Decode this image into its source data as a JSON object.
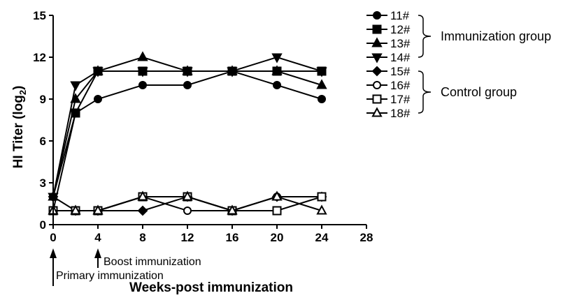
{
  "chart_data": {
    "type": "line",
    "title": "",
    "xlabel": "Weeks-post immunization",
    "ylabel_main": "HI Titer (log",
    "ylabel_sub": "2",
    "ylabel_end": ")",
    "xlim": [
      0,
      28
    ],
    "ylim": [
      0,
      15
    ],
    "xticks": [
      0,
      4,
      8,
      12,
      16,
      20,
      24,
      28
    ],
    "yticks": [
      0,
      3,
      6,
      9,
      12,
      15
    ],
    "x": [
      0,
      2,
      4,
      8,
      12,
      16,
      20,
      24
    ],
    "series": [
      {
        "name": "11#",
        "marker": "circle",
        "filled": true,
        "values": [
          2,
          8,
          9,
          10,
          10,
          11,
          10,
          9
        ]
      },
      {
        "name": "12#",
        "marker": "square",
        "filled": true,
        "values": [
          1,
          8,
          11,
          11,
          11,
          11,
          11,
          11
        ]
      },
      {
        "name": "13#",
        "marker": "triangle-up",
        "filled": true,
        "values": [
          2,
          9,
          11,
          12,
          11,
          11,
          11,
          10
        ]
      },
      {
        "name": "14#",
        "marker": "triangle-down",
        "filled": true,
        "values": [
          2,
          10,
          11,
          11,
          11,
          11,
          12,
          11
        ]
      },
      {
        "name": "15#",
        "marker": "diamond",
        "filled": true,
        "values": [
          2,
          1,
          1,
          1,
          2,
          1,
          2,
          2
        ]
      },
      {
        "name": "16#",
        "marker": "circle",
        "filled": false,
        "values": [
          1,
          1,
          1,
          2,
          1,
          1,
          2,
          2
        ]
      },
      {
        "name": "17#",
        "marker": "square",
        "filled": false,
        "values": [
          1,
          1,
          1,
          2,
          2,
          1,
          1,
          2
        ]
      },
      {
        "name": "18#",
        "marker": "triangle-up",
        "filled": false,
        "values": [
          1,
          1,
          1,
          2,
          2,
          1,
          2,
          1
        ]
      }
    ],
    "groups": [
      {
        "label": "Immunization group",
        "members": [
          "11#",
          "12#",
          "13#",
          "14#"
        ]
      },
      {
        "label": "Control group",
        "members": [
          "15#",
          "16#",
          "17#",
          "18#"
        ]
      }
    ],
    "annotations": [
      {
        "text": "Primary immunization",
        "x": 0
      },
      {
        "text": "Boost immunization",
        "x": 4
      }
    ],
    "legend_position": "right",
    "grid": false
  }
}
